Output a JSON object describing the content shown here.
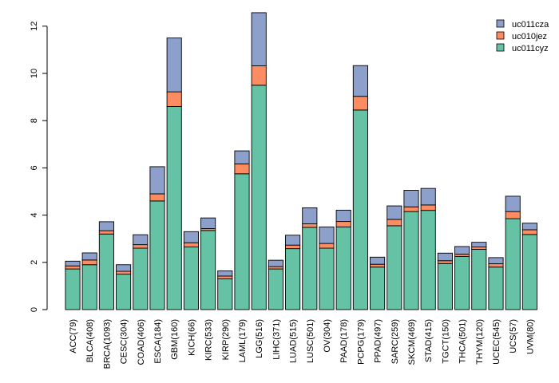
{
  "chart_data": {
    "type": "bar",
    "stacked": true,
    "title": "",
    "xlabel": "",
    "ylabel": "",
    "ylim": [
      0,
      12.5
    ],
    "yticks": [
      0,
      2,
      4,
      6,
      8,
      10,
      12
    ],
    "grid": false,
    "legend_position": "top-right",
    "categories": [
      "ACC(79)",
      "BLCA(408)",
      "BRCA(1093)",
      "CESC(304)",
      "COAD(406)",
      "ESCA(184)",
      "GBM(160)",
      "KICH(66)",
      "KIRC(533)",
      "KIRP(290)",
      "LAML(179)",
      "LGG(516)",
      "LIHC(371)",
      "LUAD(515)",
      "LUSC(501)",
      "OV(304)",
      "PAAD(178)",
      "PCPG(179)",
      "PPAD(497)",
      "SARC(259)",
      "SKCM(469)",
      "STAD(415)",
      "TGCT(150)",
      "THCA(501)",
      "THYM(120)",
      "UCEC(545)",
      "UCS(57)",
      "UVM(80)"
    ],
    "series": [
      {
        "name": "uc011cyz",
        "color": "#66c2a5",
        "values": [
          1.72,
          1.9,
          3.2,
          1.5,
          2.6,
          4.6,
          8.6,
          2.65,
          3.35,
          1.3,
          5.75,
          9.5,
          1.72,
          2.58,
          3.48,
          2.6,
          3.5,
          8.45,
          1.8,
          3.55,
          4.15,
          4.2,
          1.95,
          2.25,
          2.55,
          1.8,
          3.85,
          3.18
        ]
      },
      {
        "name": "uc010jez",
        "color": "#fc8d62",
        "values": [
          0.13,
          0.2,
          0.14,
          0.12,
          0.15,
          0.3,
          0.62,
          0.18,
          0.08,
          0.12,
          0.42,
          0.82,
          0.1,
          0.15,
          0.15,
          0.2,
          0.23,
          0.58,
          0.12,
          0.27,
          0.2,
          0.23,
          0.12,
          0.1,
          0.1,
          0.14,
          0.3,
          0.2
        ]
      },
      {
        "name": "uc011cza",
        "color": "#8da0cb",
        "values": [
          0.2,
          0.3,
          0.38,
          0.28,
          0.42,
          1.15,
          2.28,
          0.47,
          0.45,
          0.22,
          0.55,
          2.25,
          0.27,
          0.42,
          0.68,
          0.7,
          0.48,
          1.3,
          0.3,
          0.57,
          0.7,
          0.7,
          0.32,
          0.32,
          0.2,
          0.26,
          0.65,
          0.28
        ]
      }
    ],
    "legend_order": [
      "uc011cza",
      "uc010jez",
      "uc011cyz"
    ]
  }
}
